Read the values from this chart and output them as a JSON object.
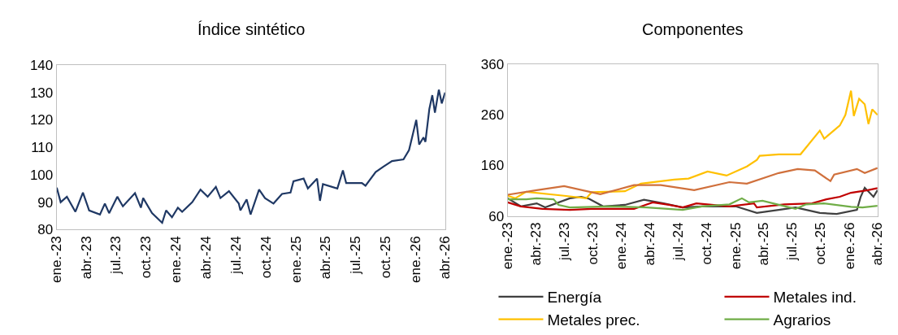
{
  "chart_data": [
    {
      "type": "line",
      "title": "Índice sintético",
      "xlim": [
        "2023-01-01",
        "2026-04-01"
      ],
      "xticks": [
        {
          "value": "2023-01-01",
          "label": "ene.-23"
        },
        {
          "value": "2023-04-01",
          "label": "abr.-23"
        },
        {
          "value": "2023-07-01",
          "label": "jul.-23"
        },
        {
          "value": "2023-10-01",
          "label": "oct.-23"
        },
        {
          "value": "2024-01-01",
          "label": "ene.-24"
        },
        {
          "value": "2024-04-01",
          "label": "abr.-24"
        },
        {
          "value": "2024-07-01",
          "label": "jul.-24"
        },
        {
          "value": "2024-10-01",
          "label": "oct.-24"
        },
        {
          "value": "2025-01-01",
          "label": "ene.-25"
        },
        {
          "value": "2025-04-01",
          "label": "abr.-25"
        },
        {
          "value": "2025-07-01",
          "label": "jul.-25"
        },
        {
          "value": "2025-10-01",
          "label": "oct.-25"
        },
        {
          "value": "2026-01-01",
          "label": "ene.-26"
        },
        {
          "value": "2026-04-01",
          "label": "abr.-26"
        }
      ],
      "ylim": [
        80,
        140
      ],
      "yticks": [
        80,
        90,
        100,
        110,
        120,
        130,
        140
      ],
      "legend": false,
      "series": [
        {
          "color": "#1f3864",
          "x": [
            "2023-01-01",
            "2023-01-13",
            "2023-02-01",
            "2023-02-27",
            "2023-03-22",
            "2023-04-10",
            "2023-05-13",
            "2023-05-28",
            "2023-06-10",
            "2023-07-05",
            "2023-07-22",
            "2023-08-28",
            "2023-09-15",
            "2023-09-22",
            "2023-10-19",
            "2023-11-19",
            "2023-12-01",
            "2023-12-19",
            "2024-01-06",
            "2024-01-19",
            "2024-02-19",
            "2024-03-15",
            "2024-04-06",
            "2024-05-01",
            "2024-05-15",
            "2024-06-10",
            "2024-07-10",
            "2024-07-15",
            "2024-08-03",
            "2024-08-15",
            "2024-09-10",
            "2024-09-28",
            "2024-10-24",
            "2024-11-19",
            "2024-12-15",
            "2024-12-24",
            "2025-01-24",
            "2025-02-06",
            "2025-03-06",
            "2025-03-15",
            "2025-03-24",
            "2025-05-07",
            "2025-05-24",
            "2025-06-03",
            "2025-07-21",
            "2025-08-01",
            "2025-09-01",
            "2025-09-25",
            "2025-10-21",
            "2025-11-25",
            "2025-12-12",
            "2026-01-03",
            "2026-01-12",
            "2026-01-25",
            "2026-01-31",
            "2026-02-12",
            "2026-02-21",
            "2026-03-01",
            "2026-03-13",
            "2026-03-22",
            "2026-04-01"
          ],
          "values": [
            95.3,
            90,
            92,
            86.5,
            93.5,
            87,
            85.5,
            89.5,
            86,
            92,
            88.5,
            93.3,
            88,
            91.5,
            86,
            82.5,
            87,
            84.5,
            88,
            86.5,
            90,
            94.6,
            92,
            95.6,
            91.5,
            94,
            89.5,
            87,
            91,
            85.5,
            94.6,
            91.5,
            89.5,
            93,
            93.5,
            97.6,
            98.6,
            95,
            98.6,
            90.5,
            96.6,
            95,
            101.6,
            97,
            97,
            96,
            101,
            103,
            105,
            105.6,
            109,
            120,
            111,
            113.6,
            112,
            124,
            129,
            122.6,
            131,
            126,
            130
          ]
        }
      ]
    },
    {
      "type": "line",
      "title": "Componentes",
      "xlim": [
        "2023-01-01",
        "2026-04-01"
      ],
      "xticks": [
        {
          "value": "2023-01-01",
          "label": "ene.-23"
        },
        {
          "value": "2023-04-01",
          "label": "abr.-23"
        },
        {
          "value": "2023-07-01",
          "label": "jul.-23"
        },
        {
          "value": "2023-10-01",
          "label": "oct.-23"
        },
        {
          "value": "2024-01-01",
          "label": "ene.-24"
        },
        {
          "value": "2024-04-01",
          "label": "abr.-24"
        },
        {
          "value": "2024-07-01",
          "label": "jul.-24"
        },
        {
          "value": "2024-10-01",
          "label": "oct.-24"
        },
        {
          "value": "2025-01-01",
          "label": "ene.-25"
        },
        {
          "value": "2025-04-01",
          "label": "abr.-25"
        },
        {
          "value": "2025-07-01",
          "label": "jul.-25"
        },
        {
          "value": "2025-10-01",
          "label": "oct.-25"
        },
        {
          "value": "2026-01-01",
          "label": "ene.-26"
        },
        {
          "value": "2026-04-01",
          "label": "abr.-26"
        }
      ],
      "ylim": [
        60,
        360
      ],
      "yticks": [
        60,
        160,
        260,
        360
      ],
      "legend": "bottom",
      "series": [
        {
          "name": "Energía",
          "color": "#404040",
          "x": [
            "2023-01-01",
            "2023-02-12",
            "2023-04-04",
            "2023-05-01",
            "2023-07-19",
            "2023-08-25",
            "2023-09-19",
            "2023-11-03",
            "2024-01-12",
            "2024-03-13",
            "2024-05-15",
            "2024-07-15",
            "2024-09-15",
            "2025-01-01",
            "2025-03-10",
            "2025-05-19",
            "2025-07-12",
            "2025-09-28",
            "2025-11-21",
            "2026-01-25",
            "2026-02-06",
            "2026-02-19",
            "2026-03-19",
            "2026-04-01"
          ],
          "values": [
            95,
            79,
            85,
            77,
            95,
            98,
            94,
            79,
            82,
            92,
            85,
            77,
            79,
            79,
            66,
            72,
            77,
            66,
            64,
            72,
            98,
            116,
            98,
            111
          ]
        },
        {
          "name": "Metales ind.",
          "color": "#c00000",
          "x": [
            "2023-01-01",
            "2023-02-12",
            "2023-04-22",
            "2023-07-19",
            "2023-09-27",
            "2024-02-10",
            "2024-04-10",
            "2024-06-01",
            "2024-07-15",
            "2024-08-28",
            "2024-12-12",
            "2025-03-01",
            "2025-03-10",
            "2025-06-06",
            "2025-09-03",
            "2025-10-19",
            "2025-12-01",
            "2026-01-06",
            "2026-03-01",
            "2026-04-01"
          ],
          "values": [
            87,
            79,
            74,
            72,
            74,
            74,
            87,
            82,
            77,
            85,
            79,
            85,
            77,
            83,
            85,
            93,
            98,
            106,
            111,
            115
          ]
        },
        {
          "name": "Metales prec.",
          "color": "#ffc000",
          "x": [
            "2023-01-01",
            "2023-01-25",
            "2023-03-01",
            "2023-07-01",
            "2023-09-10",
            "2023-09-27",
            "2024-01-12",
            "2024-03-03",
            "2024-06-18",
            "2024-08-03",
            "2024-10-03",
            "2024-12-03",
            "2025-02-06",
            "2025-03-10",
            "2025-03-19",
            "2025-05-19",
            "2025-07-28",
            "2025-09-28",
            "2025-10-12",
            "2025-12-01",
            "2025-12-19",
            "2026-01-06",
            "2026-01-15",
            "2026-02-01",
            "2026-02-19",
            "2026-03-03",
            "2026-03-15",
            "2026-04-01"
          ],
          "values": [
            100,
            95,
            108,
            100,
            95,
            107,
            109,
            124,
            132,
            134,
            148,
            140,
            158,
            171,
            179,
            182,
            182,
            229,
            213,
            239,
            260,
            308,
            258,
            292,
            281,
            242,
            271,
            260
          ]
        },
        {
          "name": "Agrarios",
          "color": "#70ad47",
          "x": [
            "2023-01-01",
            "2023-03-01",
            "2023-04-04",
            "2023-05-28",
            "2023-06-13",
            "2023-07-19",
            "2023-11-22",
            "2024-03-22",
            "2024-07-15",
            "2024-09-15",
            "2024-12-12",
            "2025-01-21",
            "2025-02-13",
            "2025-03-28",
            "2025-07-12",
            "2025-08-15",
            "2025-10-10",
            "2026-01-06",
            "2026-02-12",
            "2026-04-01"
          ],
          "values": [
            93,
            93,
            95,
            93,
            82,
            77,
            79,
            77,
            72,
            79,
            83,
            95,
            87,
            90,
            74,
            83,
            85,
            78,
            77,
            80
          ]
        },
        {
          "color": "#d0703c",
          "x": [
            "2023-01-01",
            "2023-04-04",
            "2023-07-01",
            "2023-10-25",
            "2024-02-10",
            "2024-05-06",
            "2024-08-21",
            "2024-12-12",
            "2025-02-06",
            "2025-05-19",
            "2025-07-19",
            "2025-09-12",
            "2025-11-01",
            "2025-11-13",
            "2026-01-25",
            "2026-02-19",
            "2026-04-01"
          ],
          "values": [
            102,
            111,
            119,
            103,
            121,
            121,
            111,
            127,
            124,
            145,
            153,
            150,
            129,
            142,
            153,
            145,
            155
          ]
        }
      ]
    }
  ]
}
